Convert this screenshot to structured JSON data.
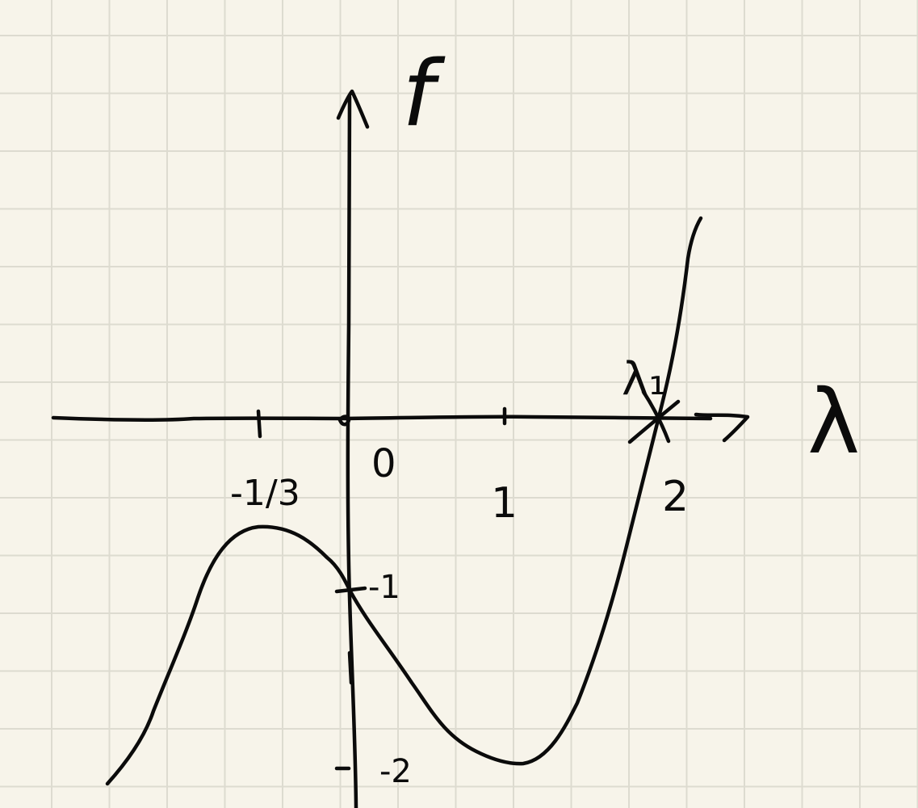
{
  "page": {
    "background_color": "#f7f4ea",
    "grid_color": "#dddbd0",
    "ink_color": "#0b0b0b"
  },
  "axes": {
    "y_label": "f",
    "x_label": "λ"
  },
  "ticks": {
    "x": [
      {
        "label": "-1/3",
        "value": -0.3333
      },
      {
        "label": "0",
        "value": 0
      },
      {
        "label": "1",
        "value": 1
      },
      {
        "label": "2",
        "value": 2
      }
    ],
    "y": [
      {
        "label": "-1",
        "value": -1
      },
      {
        "label": "-2",
        "value": -2
      }
    ]
  },
  "root_marker": {
    "label": "λ₁",
    "value": 2
  }
}
